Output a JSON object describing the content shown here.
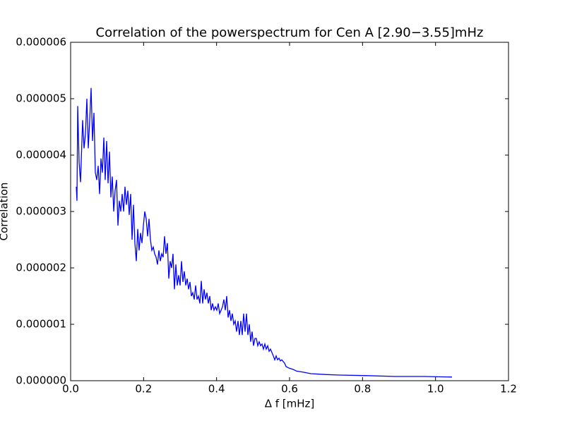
{
  "chart_data": {
    "type": "line",
    "title": "Correlation of the powerspectrum for Cen A [2.90−3.55]mHz",
    "xlabel": "Δ f [mHz]",
    "ylabel": "Correlation",
    "color": "#0000ff",
    "xlim": [
      0,
      1.2
    ],
    "ylim": [
      0,
      6e-06
    ],
    "xticks": [
      {
        "value": 0,
        "label": "0.0"
      },
      0.2,
      0.4,
      0.6,
      0.8,
      {
        "value": 1,
        "label": "1.0"
      },
      1.2
    ],
    "yticks": [
      {
        "value": 0,
        "label": "0.000000"
      },
      {
        "value": 1e-06,
        "label": "0.000001"
      },
      {
        "value": 2e-06,
        "label": "0.000002"
      },
      {
        "value": 3e-06,
        "label": "0.000003"
      },
      {
        "value": 4e-06,
        "label": "0.000004"
      },
      {
        "value": 5e-06,
        "label": "0.000005"
      },
      {
        "value": 6e-06,
        "label": "0.000006"
      }
    ],
    "x": [
      0.0155,
      0.0174,
      0.0194,
      0.0232,
      0.0271,
      0.0329,
      0.0368,
      0.0406,
      0.0445,
      0.0484,
      0.0523,
      0.0561,
      0.06,
      0.0639,
      0.0677,
      0.0716,
      0.0755,
      0.0794,
      0.0832,
      0.0871,
      0.091,
      0.0948,
      0.0987,
      0.1026,
      0.1065,
      0.1103,
      0.1142,
      0.1181,
      0.1219,
      0.1258,
      0.1297,
      0.1335,
      0.1374,
      0.1413,
      0.1452,
      0.149,
      0.1529,
      0.1568,
      0.1606,
      0.1645,
      0.1684,
      0.1723,
      0.1761,
      0.18,
      0.1839,
      0.1877,
      0.1916,
      0.1955,
      0.1994,
      0.2032,
      0.2071,
      0.211,
      0.2148,
      0.2187,
      0.2226,
      0.2265,
      0.2303,
      0.2342,
      0.2381,
      0.2419,
      0.2458,
      0.2497,
      0.2535,
      0.2574,
      0.2613,
      0.2652,
      0.269,
      0.2729,
      0.2768,
      0.2806,
      0.2845,
      0.2884,
      0.2923,
      0.2961,
      0.3,
      0.3039,
      0.3077,
      0.3116,
      0.3155,
      0.3194,
      0.3232,
      0.3271,
      0.331,
      0.3348,
      0.3387,
      0.3426,
      0.3465,
      0.3503,
      0.3542,
      0.3581,
      0.3619,
      0.3658,
      0.3697,
      0.3735,
      0.3774,
      0.3813,
      0.3852,
      0.389,
      0.3929,
      0.3968,
      0.4006,
      0.4045,
      0.4084,
      0.4123,
      0.4161,
      0.42,
      0.4239,
      0.4277,
      0.4316,
      0.4355,
      0.4394,
      0.4432,
      0.4471,
      0.451,
      0.4548,
      0.4587,
      0.4626,
      0.4665,
      0.4703,
      0.4742,
      0.4781,
      0.4819,
      0.4858,
      0.4897,
      0.4935,
      0.4974,
      0.5013,
      0.5052,
      0.509,
      0.5129,
      0.5168,
      0.5206,
      0.5245,
      0.5284,
      0.5323,
      0.5361,
      0.54,
      0.5439,
      0.5477,
      0.5516,
      0.5555,
      0.5594,
      0.5632,
      0.5671,
      0.571,
      0.5748,
      0.5787,
      0.5826,
      0.5865,
      0.5903,
      0.6,
      0.6097,
      0.6194,
      0.6387,
      0.6581,
      0.6968,
      0.7355,
      0.8129,
      0.8903,
      0.9677,
      1.0452
    ],
    "values": [
      3.44e-06,
      3.19e-06,
      4.87e-06,
      3.87e-06,
      3.52e-06,
      4.62e-06,
      4.12e-06,
      4.37e-06,
      5e-06,
      4.12e-06,
      4.62e-06,
      5.19e-06,
      4.25e-06,
      4.75e-06,
      3.69e-06,
      3.56e-06,
      3.81e-06,
      3.31e-06,
      3.94e-06,
      3.69e-06,
      4.31e-06,
      3.56e-06,
      4.25e-06,
      3.5e-06,
      4.06e-06,
      3.25e-06,
      3.62e-06,
      3e-06,
      3.37e-06,
      3.56e-06,
      2.75e-06,
      3.19e-06,
      3e-06,
      3.31e-06,
      3e-06,
      3.44e-06,
      3.12e-06,
      3.37e-06,
      2.94e-06,
      3.31e-06,
      2.5e-06,
      3.12e-06,
      2.44e-06,
      2.12e-06,
      2.69e-06,
      2.31e-06,
      2.62e-06,
      2.44e-06,
      2.75e-06,
      3e-06,
      2.87e-06,
      2.56e-06,
      2.87e-06,
      2.5e-06,
      2.31e-06,
      2.37e-06,
      2.25e-06,
      2.19e-06,
      2.06e-06,
      2.31e-06,
      2.12e-06,
      2.25e-06,
      2.19e-06,
      2.56e-06,
      2.25e-06,
      2.44e-06,
      1.81e-06,
      2.12e-06,
      2e-06,
      2.25e-06,
      1.62e-06,
      2.06e-06,
      1.69e-06,
      1.87e-06,
      1.69e-06,
      2.12e-06,
      1.75e-06,
      1.94e-06,
      1.69e-06,
      1.81e-06,
      1.62e-06,
      1.75e-06,
      1.5e-06,
      1.56e-06,
      1.44e-06,
      1.69e-06,
      1.44e-06,
      1.5e-06,
      1.37e-06,
      1.77e-06,
      1.37e-06,
      1.62e-06,
      1.44e-06,
      1.56e-06,
      1.37e-06,
      1.5e-06,
      1.25e-06,
      1.37e-06,
      1.25e-06,
      1.31e-06,
      1.25e-06,
      1.37e-06,
      1.19e-06,
      1.25e-06,
      1.31e-06,
      1.44e-06,
      1.25e-06,
      1.5e-06,
      1.12e-06,
      1.25e-06,
      1.06e-06,
      1.19e-06,
      1e-06,
      1.06e-06,
      8.7e-07,
      1.06e-06,
      8.1e-07,
      1.06e-06,
      8.1e-07,
      1.19e-06,
      8.7e-07,
      1.19e-06,
      8.1e-07,
      1e-06,
      6.9e-07,
      8.7e-07,
      6.2e-07,
      7.5e-07,
      7.5e-07,
      6.2e-07,
      6.9e-07,
      6.2e-07,
      6.5e-07,
      5.6e-07,
      6.5e-07,
      5.6e-07,
      6.2e-07,
      5.2e-07,
      5.6e-07,
      5e-07,
      4.4e-07,
      3.7e-07,
      4.4e-07,
      3.7e-07,
      4e-07,
      3.5e-07,
      3.7e-07,
      3.4e-07,
      3.1e-07,
      2.5e-07,
      2.2e-07,
      2e-07,
      1.7e-07,
      1.5e-07,
      1.25e-07,
      1.1e-07,
      1e-07,
      9e-08,
      7.5e-08,
      7.5e-08,
      6.5e-08
    ]
  }
}
